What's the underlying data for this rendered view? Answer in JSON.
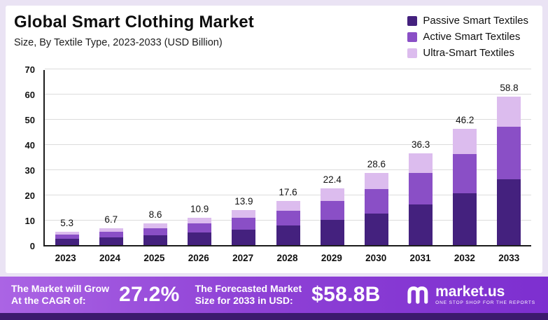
{
  "header": {
    "title": "Global Smart Clothing Market",
    "subtitle": "Size, By Textile Type, 2023-2033 (USD Billion)"
  },
  "legend": [
    {
      "label": "Passive Smart Textiles",
      "color": "#44217e"
    },
    {
      "label": "Active Smart Textiles",
      "color": "#8a4fc6"
    },
    {
      "label": "Ultra-Smart Textiles",
      "color": "#dcbcee"
    }
  ],
  "chart_data": {
    "type": "bar",
    "stacked": true,
    "title": "Global Smart Clothing Market Size, By Textile Type, 2023-2033 (USD Billion)",
    "categories": [
      "2023",
      "2024",
      "2025",
      "2026",
      "2027",
      "2028",
      "2029",
      "2030",
      "2031",
      "2032",
      "2033"
    ],
    "totals": [
      5.3,
      6.7,
      8.6,
      10.9,
      13.9,
      17.6,
      22.4,
      28.6,
      36.3,
      46.2,
      58.8
    ],
    "series": [
      {
        "name": "Passive Smart Textiles",
        "color": "#44217e",
        "values": [
          2.4,
          3.0,
          3.9,
          4.9,
          6.2,
          7.8,
          10.0,
          12.5,
          16.0,
          20.5,
          26.0
        ]
      },
      {
        "name": "Active Smart Textiles",
        "color": "#8a4fc6",
        "values": [
          1.8,
          2.2,
          2.8,
          3.6,
          4.7,
          5.9,
          7.5,
          9.6,
          12.5,
          15.7,
          21.0
        ]
      },
      {
        "name": "Ultra-Smart Textiles",
        "color": "#dcbcee",
        "values": [
          1.1,
          1.5,
          1.9,
          2.4,
          3.0,
          3.9,
          4.9,
          6.5,
          7.8,
          10.0,
          11.8
        ]
      }
    ],
    "xlabel": "",
    "ylabel": "",
    "ylim": [
      0,
      70
    ],
    "yticks": [
      0,
      10,
      20,
      30,
      40,
      50,
      60,
      70
    ],
    "grid": true,
    "legend_position": "top-right"
  },
  "banner": {
    "cagr_label_line1": "The Market will Grow",
    "cagr_label_line2": "At the CAGR of:",
    "cagr_value": "27.2%",
    "forecast_label_line1": "The Forecasted Market",
    "forecast_label_line2": "Size for 2033 in USD:",
    "forecast_value": "$58.8B",
    "brand": "market.us",
    "brand_tagline": "ONE STOP SHOP FOR THE REPORTS"
  }
}
